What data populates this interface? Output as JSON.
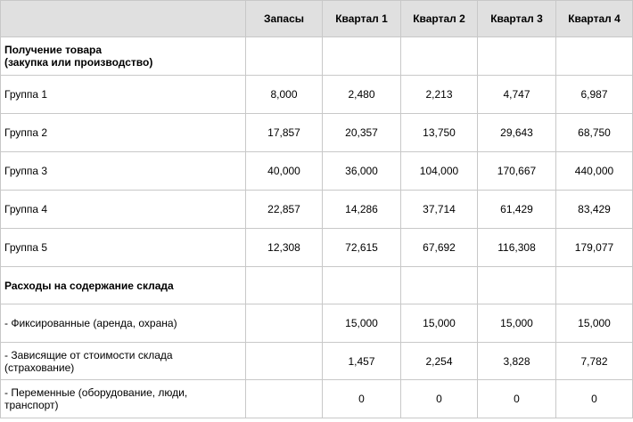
{
  "headers": [
    "",
    "Запасы",
    "Квартал 1",
    "Квартал 2",
    "Квартал 3",
    "Квартал 4"
  ],
  "rows": [
    {
      "label": "Получение товара\n(закупка или производство)",
      "section": true,
      "values": [
        "",
        "",
        "",
        "",
        ""
      ]
    },
    {
      "label": "Группа 1",
      "section": false,
      "values": [
        "8,000",
        "2,480",
        "2,213",
        "4,747",
        "6,987"
      ]
    },
    {
      "label": "Группа 2",
      "section": false,
      "values": [
        "17,857",
        "20,357",
        "13,750",
        "29,643",
        "68,750"
      ]
    },
    {
      "label": "Группа 3",
      "section": false,
      "values": [
        "40,000",
        "36,000",
        "104,000",
        "170,667",
        "440,000"
      ]
    },
    {
      "label": "Группа 4",
      "section": false,
      "values": [
        "22,857",
        "14,286",
        "37,714",
        "61,429",
        "83,429"
      ]
    },
    {
      "label": "Группа 5",
      "section": false,
      "values": [
        "12,308",
        "72,615",
        "67,692",
        "116,308",
        "179,077"
      ]
    },
    {
      "label": "Расходы на содержание склада",
      "section": true,
      "values": [
        "",
        "",
        "",
        "",
        ""
      ]
    },
    {
      "label": "- Фиксированные (аренда, охрана)",
      "section": false,
      "values": [
        "",
        "15,000",
        "15,000",
        "15,000",
        "15,000"
      ]
    },
    {
      "label": "- Зависящие от стоимости склада\n(страхование)",
      "section": false,
      "values": [
        "",
        "1,457",
        "2,254",
        "3,828",
        "7,782"
      ]
    },
    {
      "label": "- Переменные (оборудование, люди,\nтранспорт)",
      "section": false,
      "values": [
        "",
        "0",
        "0",
        "0",
        "0"
      ]
    }
  ]
}
